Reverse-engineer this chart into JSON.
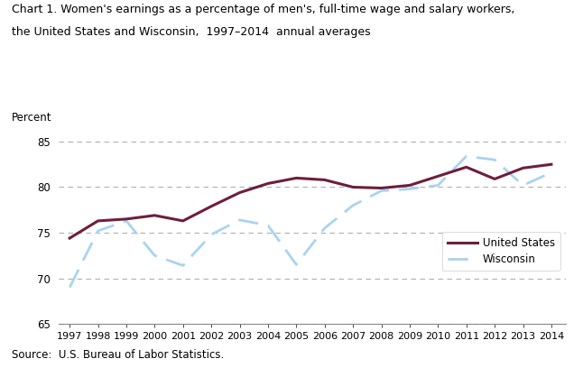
{
  "title_line1": "Chart 1. Women's earnings as a percentage of men's, full-time wage and salary workers,",
  "title_line2": "the United States and Wisconsin,  1997–2014  annual averages",
  "ylabel": "Percent",
  "source": "Source:  U.S. Bureau of Labor Statistics.",
  "years": [
    1997,
    1998,
    1999,
    2000,
    2001,
    2002,
    2003,
    2004,
    2005,
    2006,
    2007,
    2008,
    2009,
    2010,
    2011,
    2012,
    2013,
    2014
  ],
  "us_data": [
    74.4,
    76.3,
    76.5,
    76.9,
    76.3,
    77.9,
    79.4,
    80.4,
    81.0,
    80.8,
    80.0,
    79.9,
    80.2,
    81.2,
    82.2,
    80.9,
    82.1,
    82.5
  ],
  "wi_data": [
    69.0,
    75.2,
    76.3,
    72.5,
    71.4,
    74.8,
    76.4,
    75.8,
    71.5,
    75.5,
    78.0,
    79.6,
    79.8,
    80.2,
    83.4,
    83.0,
    80.2,
    81.6
  ],
  "us_color": "#6d1f3c",
  "wi_color": "#a8d4f0",
  "ylim": [
    65,
    86
  ],
  "yticks": [
    65,
    70,
    75,
    80,
    85
  ],
  "grid_color": "#b0b0b0",
  "background_color": "#ffffff",
  "legend_labels": [
    "United States",
    "Wisconsin"
  ]
}
